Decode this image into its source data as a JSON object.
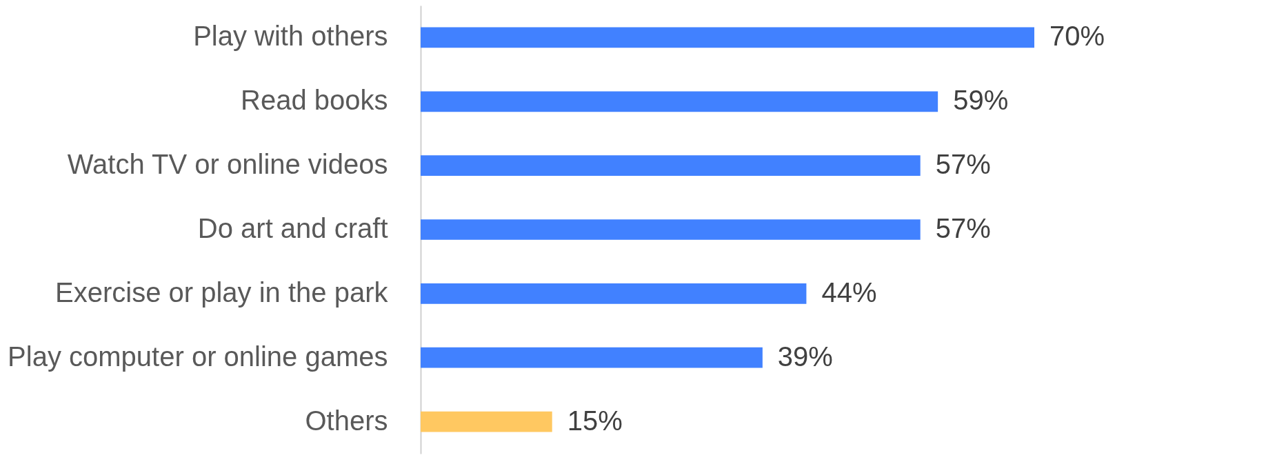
{
  "chart_data": {
    "type": "bar",
    "orientation": "horizontal",
    "grid": false,
    "categories": [
      "Play with others",
      "Read books",
      "Watch TV or online videos",
      "Do art and craft",
      "Exercise or play in the park",
      "Play computer or online games",
      "Others"
    ],
    "values": [
      70,
      59,
      57,
      57,
      44,
      39,
      15
    ],
    "value_labels": [
      "70%",
      "59%",
      "57%",
      "57%",
      "44%",
      "39%",
      "15%"
    ],
    "colors": [
      "#4181ff",
      "#4181ff",
      "#4181ff",
      "#4181ff",
      "#4181ff",
      "#4181ff",
      "#ffc861"
    ]
  }
}
